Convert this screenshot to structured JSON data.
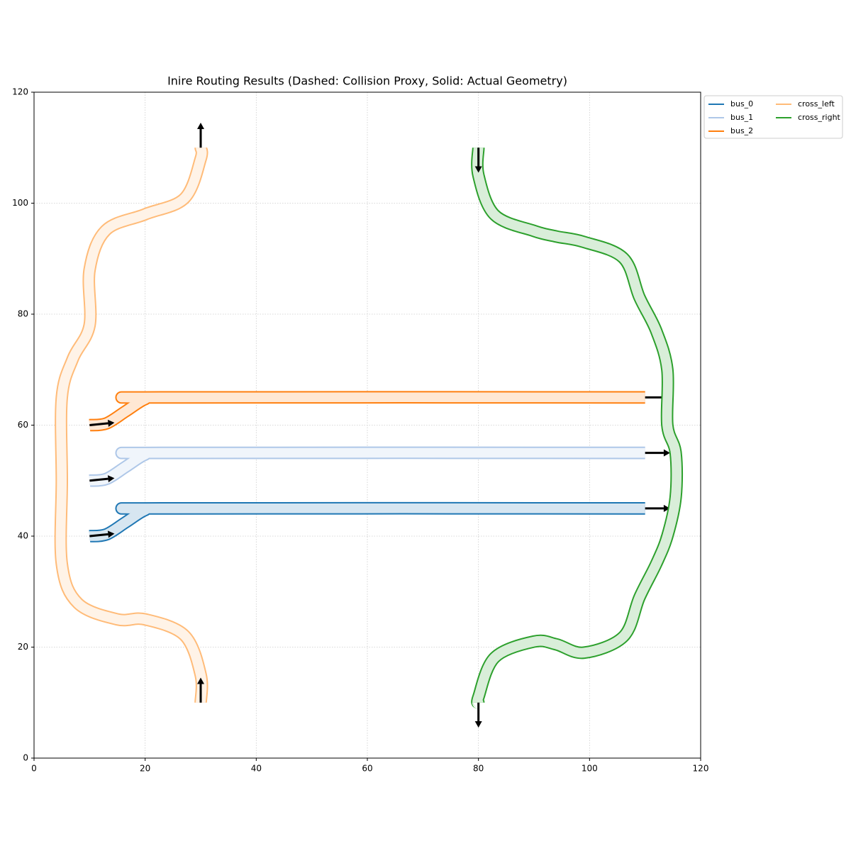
{
  "chart_data": {
    "type": "route",
    "title": "Inire Routing Results (Dashed: Collision Proxy, Solid: Actual Geometry)",
    "xlim": [
      0,
      120
    ],
    "ylim": [
      0,
      120
    ],
    "xticks": [
      0,
      20,
      40,
      60,
      80,
      100,
      120
    ],
    "yticks": [
      0,
      20,
      40,
      60,
      80,
      100,
      120
    ],
    "grid": true,
    "legend": "outside upper right",
    "series": [
      {
        "name": "bus_0",
        "color": "#1f77b4",
        "x": [
          10,
          13,
          16.5,
          20,
          23,
          110
        ],
        "y": [
          40,
          40.3,
          42.5,
          44.7,
          45,
          45
        ]
      },
      {
        "name": "bus_1",
        "color": "#aec7e8",
        "x": [
          10,
          13,
          16.5,
          20,
          23,
          110
        ],
        "y": [
          50,
          50.3,
          52.5,
          54.7,
          55,
          55
        ]
      },
      {
        "name": "bus_2",
        "color": "#ff7f0e",
        "x": [
          10,
          13,
          16.5,
          20,
          23,
          110
        ],
        "y": [
          60,
          60.3,
          62.5,
          64.7,
          65,
          65
        ]
      },
      {
        "name": "cross_left",
        "color": "#ffbb78",
        "x": [
          30,
          30,
          27.1,
          20,
          15,
          7.9,
          5,
          5,
          5,
          7,
          10,
          10,
          12.9,
          20,
          27.1,
          30,
          30
        ],
        "y": [
          10,
          15,
          22.1,
          25,
          25,
          27.9,
          35,
          50,
          65,
          72,
          78,
          88,
          95.1,
          98,
          100.9,
          108,
          110
        ]
      },
      {
        "name": "cross_right",
        "color": "#2ca02c",
        "x": [
          80,
          80,
          82.9,
          90,
          94,
          99,
          106.1,
          109,
          112,
          114,
          114,
          115.5,
          115.5,
          114,
          112,
          109,
          106.1,
          99,
          94,
          90,
          82.9,
          80,
          80
        ],
        "y": [
          110,
          105,
          97.9,
          95,
          94,
          93,
          90.1,
          83,
          77,
          70,
          60,
          55,
          47,
          40,
          35,
          29,
          21.9,
          19,
          20.5,
          21,
          18.1,
          11,
          10
        ]
      }
    ]
  }
}
